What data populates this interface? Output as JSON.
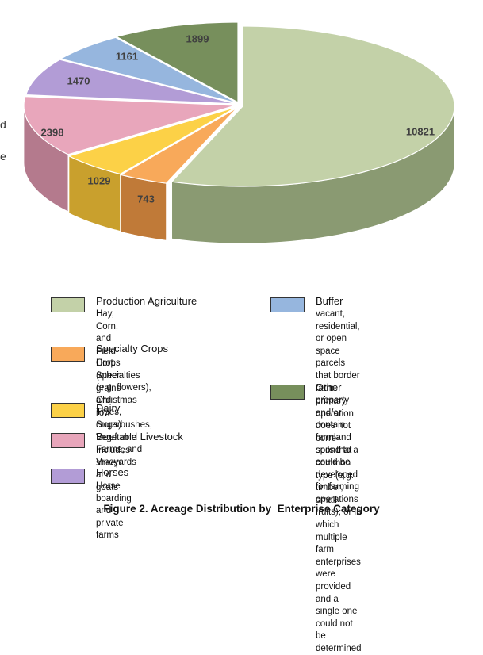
{
  "chart_data": {
    "type": "pie",
    "style": "3d-exploded-top",
    "title": "",
    "slices": [
      {
        "name": "Production Agriculture",
        "value": 10821,
        "label": "10821",
        "color": "#c3d1a8",
        "side_color": "#8a9a72"
      },
      {
        "name": "Specialty Crops",
        "value": 743,
        "label": "743",
        "color": "#f8a95a",
        "side_color": "#c07a38"
      },
      {
        "name": "Dairy",
        "value": 1029,
        "label": "1029",
        "color": "#fcd147",
        "side_color": "#c9a02d"
      },
      {
        "name": "Beef and Livestock",
        "value": 2398,
        "label": "2398",
        "color": "#e8a6bb",
        "side_color": "#b47a8d"
      },
      {
        "name": "Horses",
        "value": 1470,
        "label": "1470",
        "color": "#b29cd6",
        "side_color": "#8472a3"
      },
      {
        "name": "Buffer",
        "value": 1161,
        "label": "1161",
        "color": "#96b6de",
        "side_color": "#6a88ac"
      },
      {
        "name": "Other",
        "value": 1899,
        "label": "1899",
        "color": "#778f5c",
        "side_color": "#56693f"
      }
    ]
  },
  "left_edge_text": [
    "d",
    "e"
  ],
  "legend": [
    {
      "title": "Production Agriculture",
      "desc": "Hay, Corn, and Field Crops\n(other grains and row crops)",
      "color": "#c3d1a8"
    },
    {
      "title": "Specialty Crops",
      "desc": "Hort. Specialties (e.g. flowers),\nChristmas Trees, Sugarbushes,\nVegetable Farms, and Vineyards",
      "color": "#f8a95a"
    },
    {
      "title": "Dairy",
      "desc": "",
      "color": "#fcd147"
    },
    {
      "title": "Beef and Livestock",
      "desc": "Includes sheep and goats",
      "color": "#e8a6bb"
    },
    {
      "title": "Horses",
      "desc": "Horse boarding and private farms",
      "color": "#b29cd6"
    },
    {
      "title": "Buffer",
      "desc": "vacant, residential, or open space\nparcels that border farm property\nand/or contain farmland soils that\ncould be developed for farming\noperations",
      "color": "#96b6de"
    },
    {
      "title": "Other",
      "desc": "primary operation does not corre-\nspond to a common type (e.g.\ntimber, small fruits), or in which\nmultiple farm enterprises were\nprovided and a single one could not\nbe determined",
      "color": "#778f5c"
    }
  ],
  "caption": "Figure 2. Acreage Distribution by  Enterprise Category"
}
